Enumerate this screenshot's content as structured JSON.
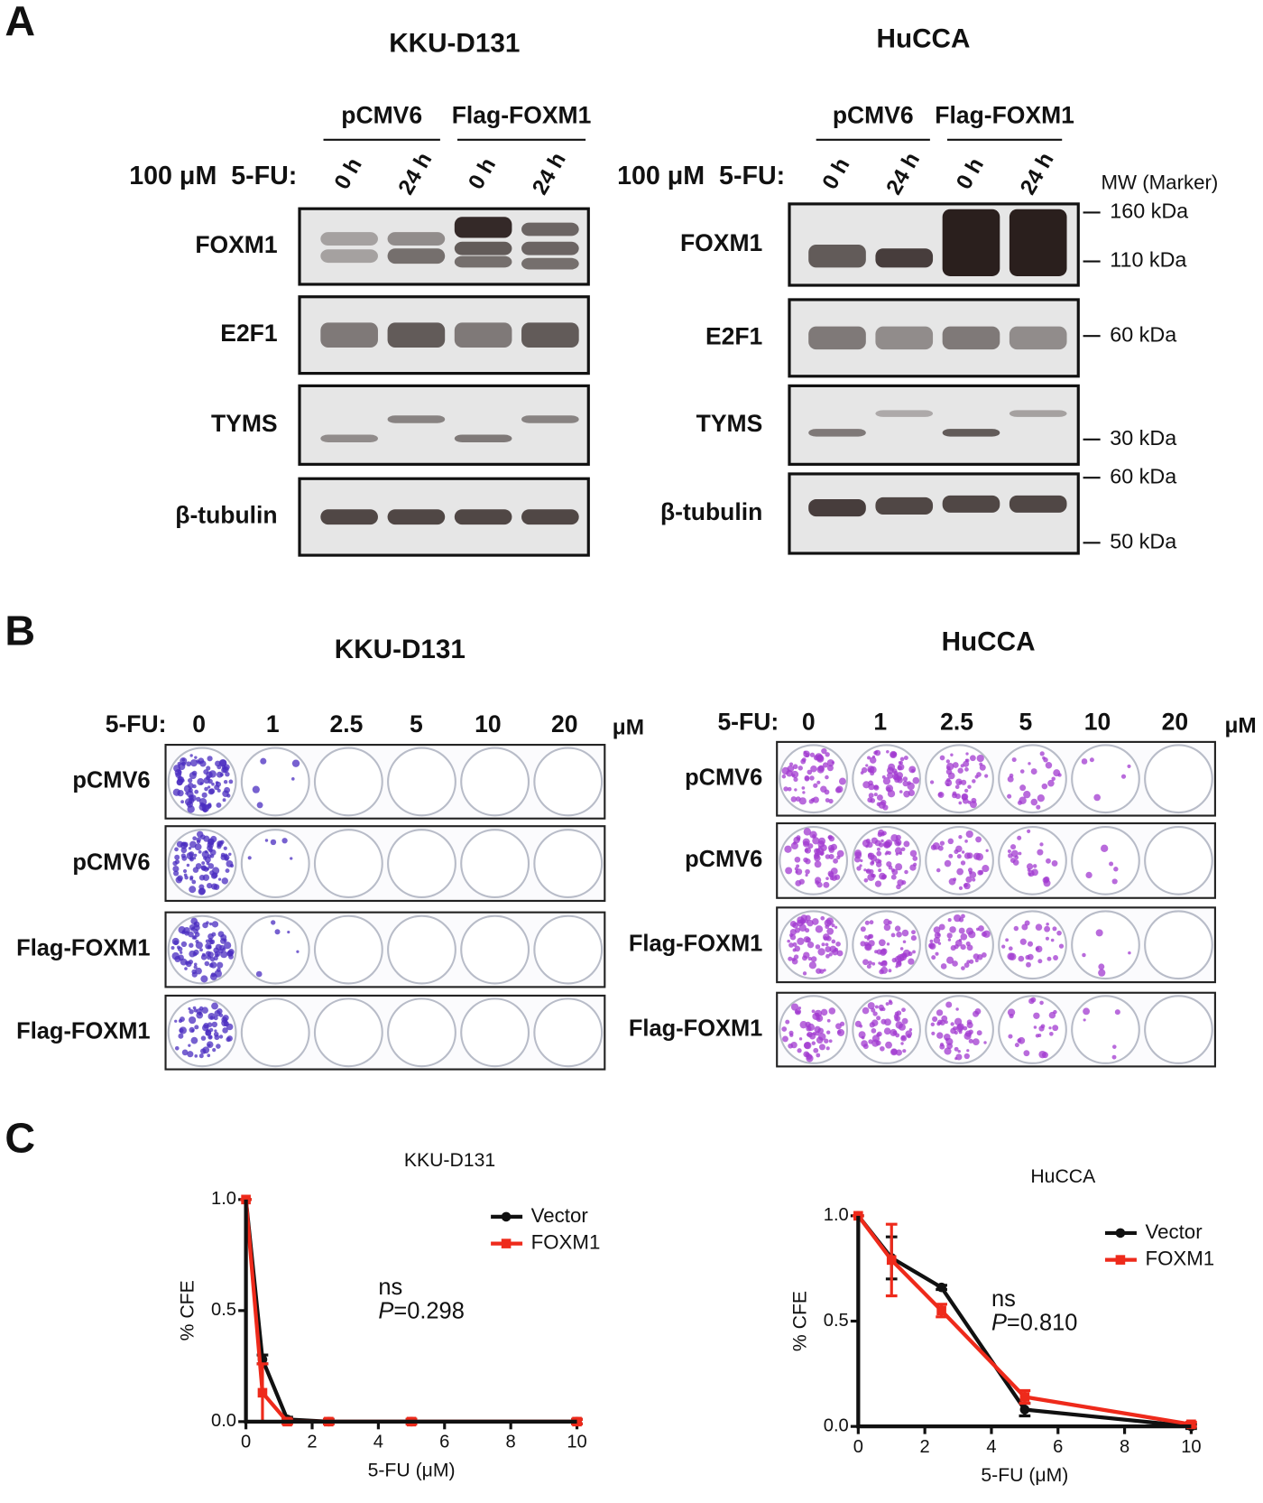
{
  "panel_a": {
    "label": "A",
    "blots": [
      {
        "cell_line": "KKU-D131",
        "groups": [
          "pCMV6",
          "Flag-FOXM1"
        ],
        "treatment": "100 μM  5-FU:",
        "times": [
          "0 h",
          "24 h",
          "0 h",
          "24 h"
        ],
        "proteins": [
          "FOXM1",
          "E2F1",
          "TYMS",
          "β-tubulin"
        ]
      },
      {
        "cell_line": "HuCCA",
        "groups": [
          "pCMV6",
          "Flag-FOXM1"
        ],
        "treatment": "100 μM  5-FU:",
        "times": [
          "0 h",
          "24 h",
          "0 h",
          "24 h"
        ],
        "proteins": [
          "FOXM1",
          "E2F1",
          "TYMS",
          "β-tubulin"
        ]
      }
    ],
    "mw_title": "MW (Marker)",
    "markers": [
      "160 kDa",
      "110 kDa",
      "60 kDa",
      "30 kDa",
      "60 kDa",
      "50 kDa"
    ]
  },
  "panel_b": {
    "label": "B",
    "plates": [
      {
        "cell_line": "KKU-D131",
        "treatment": "5-FU:",
        "doses": [
          "0",
          "1",
          "2.5",
          "5",
          "10",
          "20"
        ],
        "unit": "μM",
        "rows": [
          "pCMV6",
          "pCMV6",
          "Flag-FOXM1",
          "Flag-FOXM1"
        ]
      },
      {
        "cell_line": "HuCCA",
        "treatment": "5-FU:",
        "doses": [
          "0",
          "1",
          "2.5",
          "5",
          "10",
          "20"
        ],
        "unit": "μM",
        "rows": [
          "pCMV6",
          "pCMV6",
          "Flag-FOXM1",
          "Flag-FOXM1"
        ]
      }
    ]
  },
  "panel_c": {
    "label": "C"
  },
  "chart_data": [
    {
      "type": "line",
      "title": "KKU-D131",
      "x_label": "5-FU (μM)",
      "y_label": "% CFE",
      "x": [
        0,
        0.5,
        1.25,
        2.5,
        5,
        10
      ],
      "xlim": [
        0,
        10
      ],
      "xticks": [
        0,
        2,
        4,
        6,
        8,
        10
      ],
      "ylim": [
        0,
        1
      ],
      "yticks": [
        {
          "value": 0,
          "label": "0.0"
        },
        {
          "value": 0.5,
          "label": "0.5"
        },
        {
          "value": 1,
          "label": "1.0"
        }
      ],
      "legend": "upper right",
      "series": [
        {
          "name": "Vector",
          "color": "#111111",
          "marker": "circle",
          "values": [
            1.0,
            0.28,
            0.01,
            0.0,
            0.0,
            0.0
          ],
          "errors": [
            0,
            0.02,
            0.01,
            0.01,
            0.01,
            0.01
          ]
        },
        {
          "name": "FOXM1",
          "color": "#ee2a1b",
          "marker": "square",
          "values": [
            1.0,
            0.13,
            0.0,
            0.0,
            0.0,
            0.0
          ],
          "errors": [
            0,
            0.13,
            0.01,
            0.01,
            0.01,
            0.01
          ]
        }
      ],
      "annotations": {
        "significance": "ns",
        "p_symbol": "P",
        "p_value": "=0.298"
      }
    },
    {
      "type": "line",
      "title": "HuCCA",
      "x_label": "5-FU (μM)",
      "y_label": "% CFE",
      "x": [
        0,
        1,
        2.5,
        5,
        10
      ],
      "xlim": [
        0,
        10
      ],
      "xticks": [
        0,
        2,
        4,
        6,
        8,
        10
      ],
      "ylim": [
        0,
        1
      ],
      "yticks": [
        {
          "value": 0,
          "label": "0.0"
        },
        {
          "value": 0.5,
          "label": "0.5"
        },
        {
          "value": 1,
          "label": "1.0"
        }
      ],
      "legend": "upper right",
      "series": [
        {
          "name": "Vector",
          "color": "#111111",
          "marker": "circle",
          "values": [
            1.0,
            0.8,
            0.66,
            0.08,
            0.0
          ],
          "errors": [
            0,
            0.1,
            0.01,
            0.03,
            0.01
          ]
        },
        {
          "name": "FOXM1",
          "color": "#ee2a1b",
          "marker": "square",
          "values": [
            1.0,
            0.79,
            0.55,
            0.14,
            0.01
          ],
          "errors": [
            0,
            0.17,
            0.03,
            0.03,
            0.01
          ]
        }
      ],
      "annotations": {
        "significance": "ns",
        "p_symbol": "P",
        "p_value": "=0.810"
      }
    }
  ]
}
